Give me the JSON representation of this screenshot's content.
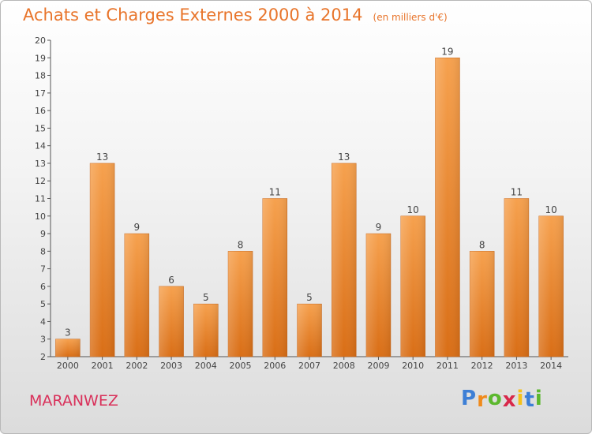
{
  "chart_data": {
    "type": "bar",
    "title": "Achats et Charges Externes 2000 à 2014",
    "subtitle": "(en milliers d'€)",
    "categories": [
      "2000",
      "2001",
      "2002",
      "2003",
      "2004",
      "2005",
      "2006",
      "2007",
      "2008",
      "2009",
      "2010",
      "2011",
      "2012",
      "2013",
      "2014"
    ],
    "values": [
      3,
      13,
      9,
      6,
      5,
      8,
      11,
      5,
      13,
      9,
      10,
      19,
      8,
      11,
      10
    ],
    "ylim": [
      2,
      20
    ],
    "yticks": [
      2,
      3,
      4,
      5,
      6,
      7,
      8,
      9,
      10,
      11,
      12,
      13,
      14,
      15,
      16,
      17,
      18,
      19,
      20
    ],
    "grid": false,
    "bar_color_top": "#f6a14e",
    "bar_color_bottom": "#d96e16"
  },
  "commune": "MARANWEZ",
  "logo": {
    "letters": [
      "P",
      "r",
      "o",
      "x",
      "i",
      "t",
      "i"
    ],
    "colors": [
      "#3d7fd6",
      "#f08a1c",
      "#5cb82e",
      "#d8284a",
      "#f5c11a",
      "#3d7fd6",
      "#5cb82e"
    ]
  }
}
